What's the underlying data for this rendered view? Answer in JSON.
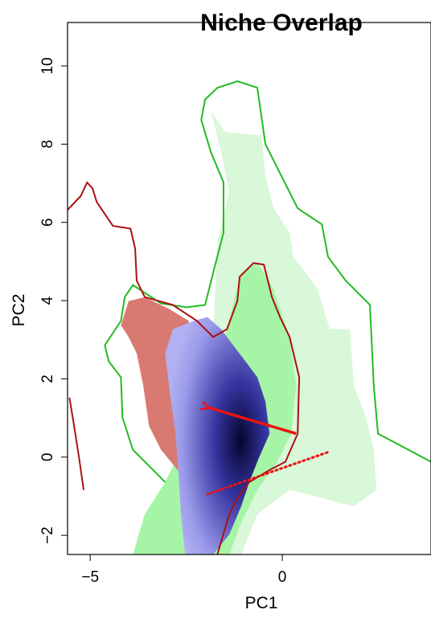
{
  "chart_data": {
    "type": "contour",
    "title": "Niche Overlap",
    "xlabel": "PC1",
    "ylabel": "PC2",
    "xlim": [
      -5.59,
      3.87
    ],
    "ylim": [
      -2.49,
      11.11
    ],
    "xticks": [
      {
        "value": -5,
        "label": "−5"
      },
      0
    ],
    "yticks": [
      {
        "value": -2,
        "label": "−2"
      },
      0,
      2,
      4,
      6,
      8,
      10
    ],
    "fills": [
      {
        "color": "#d9f7d9",
        "x": [
          -1.86,
          -1.49,
          -0.54,
          -0.44,
          -0.23,
          0.19,
          0.29,
          0.92,
          1.23,
          1.76,
          1.86,
          2.18,
          2.38,
          2.45,
          1.86,
          1.03,
          0.19,
          -0.65,
          -1.07,
          -3.16,
          -1.8,
          -1.8,
          -1.69,
          -1.38,
          -1.59
        ],
        "y": [
          8.84,
          8.31,
          8.22,
          7.18,
          6.36,
          5.74,
          5.12,
          4.3,
          3.27,
          3.27,
          1.83,
          1.01,
          0.19,
          -0.84,
          -1.26,
          -1.05,
          -0.84,
          -1.46,
          -2.49,
          -2.49,
          0.19,
          3.07,
          5.53,
          6.77,
          7.8
        ]
      },
      {
        "color": "#a6f5a6",
        "x": [
          -1.07,
          -0.65,
          -0.23,
          0.19,
          0.36,
          0.23,
          -0.13,
          -0.65,
          -1.07,
          -1.38,
          -3.89,
          -3.58,
          -3.05,
          -2.64,
          -1.49,
          -1.28
        ],
        "y": [
          4.71,
          4.96,
          4.3,
          3.07,
          1.83,
          0.6,
          -0.12,
          -0.84,
          -1.67,
          -2.49,
          -2.49,
          -1.46,
          -0.64,
          0.19,
          3.07,
          3.89
        ]
      },
      {
        "color": "#d97a72",
        "x": [
          -4.0,
          -3.58,
          -2.95,
          -2.43,
          -2.64,
          -2.85,
          -2.74,
          -2.64,
          -3.16,
          -3.47,
          -3.62,
          -3.79,
          -4.0,
          -4.2
        ],
        "y": [
          3.99,
          4.09,
          3.79,
          3.48,
          2.65,
          2.04,
          0.8,
          -0.43,
          0.19,
          0.8,
          1.83,
          2.65,
          3.07,
          3.37
        ]
      },
      {
        "color": "#0a0a55",
        "x": [
          -2.32,
          -1.95,
          -1.59,
          -1.28,
          -0.96,
          -0.65,
          -0.44,
          -0.33,
          -0.61,
          -0.86,
          -1.07,
          -1.38,
          -1.8,
          -2.53,
          -2.64,
          -2.7,
          -2.78,
          -2.95,
          -3.05,
          -2.85
        ],
        "y": [
          3.48,
          3.58,
          3.27,
          2.86,
          2.45,
          2.04,
          1.42,
          0.6,
          -0.02,
          -0.64,
          -1.26,
          -1.98,
          -2.49,
          -2.49,
          -1.46,
          -0.43,
          0.6,
          1.83,
          2.65,
          3.27
        ]
      }
    ],
    "contours": [
      {
        "color": "#22bb22",
        "x": [
          3.87,
          2.49,
          2.38,
          2.32,
          2.28,
          1.65,
          1.19,
          1.03,
          0.4,
          -0.02,
          -0.44,
          -0.65,
          -1.17,
          -1.69,
          -2.01,
          -2.11,
          -1.86,
          -1.53,
          -1.53,
          -1.8,
          -2.01,
          -2.49,
          -3.16,
          -3.89,
          -4.1,
          -4.2,
          -4.62,
          -4.52,
          -4.2,
          -4.16,
          -3.89,
          -3.05
        ],
        "y": [
          -0.12,
          0.6,
          1.83,
          3.07,
          3.89,
          4.51,
          5.12,
          5.95,
          6.36,
          7.18,
          8.0,
          9.44,
          9.61,
          9.44,
          9.14,
          8.62,
          7.8,
          7.02,
          5.74,
          4.71,
          3.89,
          3.83,
          3.93,
          4.4,
          4.09,
          3.48,
          2.86,
          2.45,
          2.04,
          1.01,
          0.19,
          -0.64
        ]
      },
      {
        "color": "#aa1111",
        "x": [
          -5.59,
          -5.25,
          -5.08,
          -4.94,
          -4.83,
          -4.41,
          -3.95,
          -3.83,
          -3.79,
          -3.58,
          -2.85,
          -2.22,
          -1.8,
          -1.44,
          -1.17,
          -1.11,
          -0.75,
          -0.48,
          -0.27,
          -0.06,
          0.19,
          0.44,
          0.4,
          0.08,
          -0.33,
          -0.86,
          -1.17,
          -1.38,
          -1.69
        ],
        "y": [
          6.32,
          6.67,
          7.02,
          6.87,
          6.52,
          5.91,
          5.84,
          5.33,
          4.51,
          4.09,
          3.89,
          3.48,
          3.07,
          3.27,
          3.99,
          4.61,
          4.96,
          4.92,
          4.09,
          3.58,
          3.07,
          2.04,
          0.6,
          -0.12,
          -0.33,
          -0.64,
          -1.05,
          -1.46,
          -2.49
        ]
      },
      {
        "color": "#aa1111",
        "x": [
          -5.54,
          -5.42,
          -5.29,
          -5.17
        ],
        "y": [
          1.52,
          0.8,
          -0.02,
          -0.84
        ]
      }
    ],
    "arrow": {
      "color": "#ee1111",
      "x": [
        0.36,
        -1.9
      ],
      "y": [
        0.6,
        1.26
      ]
    },
    "shift_line": {
      "color": "#ee1111",
      "x": [
        -1.95,
        1.23
      ],
      "y": [
        -0.95,
        0.14
      ]
    }
  }
}
